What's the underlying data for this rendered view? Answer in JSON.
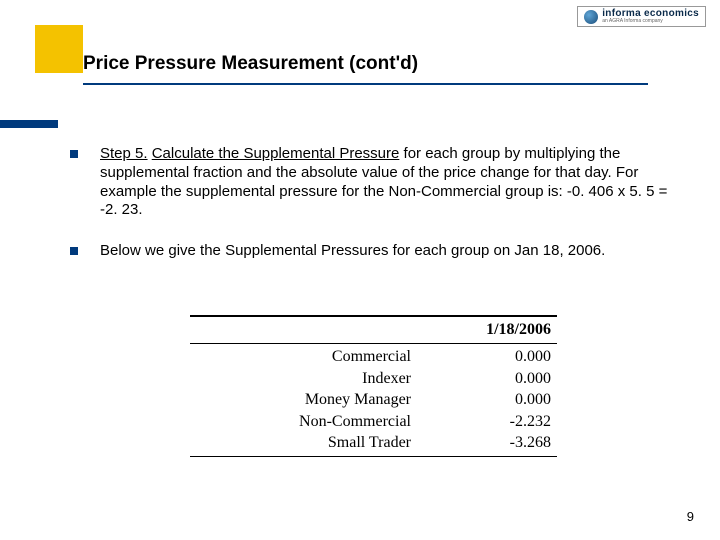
{
  "logo": {
    "brand": "informa economics",
    "sub": "an AGRA Informa company"
  },
  "title": "Price Pressure Measurement (cont'd)",
  "bullets": [
    {
      "step_label": "Step 5.",
      "action": "Calculate the Supplemental Pressure",
      "rest": " for each group by multiplying the supplemental fraction and the absolute value of the price change for that day.  For example the supplemental pressure for the Non-Commercial group is:  -0. 406 x 5. 5 = -2. 23."
    },
    {
      "plain": "Below we give the Supplemental Pressures for each group on Jan 18, 2006."
    }
  ],
  "table": {
    "date": "1/18/2006",
    "rows": [
      {
        "label": "Commercial",
        "value": "0.000"
      },
      {
        "label": "Indexer",
        "value": "0.000"
      },
      {
        "label": "Money Manager",
        "value": "0.000"
      },
      {
        "label": "Non-Commercial",
        "value": "-2.232"
      },
      {
        "label": "Small Trader",
        "value": "-3.268"
      }
    ]
  },
  "page_number": "9",
  "colors": {
    "accent_yellow": "#f4c200",
    "accent_blue": "#003a7d"
  }
}
